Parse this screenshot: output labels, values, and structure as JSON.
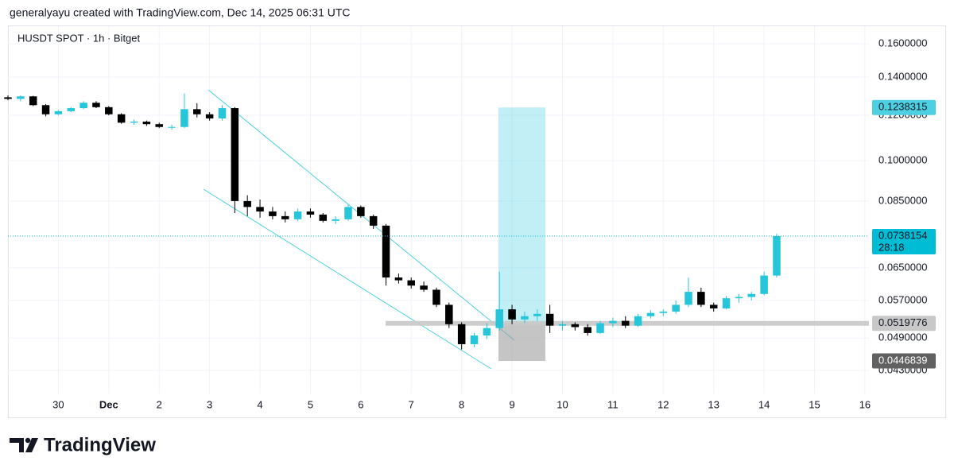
{
  "header": {
    "attribution": "generalyayu created with TradingView.com, Dec 14, 2025 06:31 UTC"
  },
  "footer": {
    "brand": "TradingView"
  },
  "chart_data": {
    "type": "candlestick",
    "title": "HUSDT SPOT · 1h · Bitget",
    "log_scale": true,
    "grid": true,
    "up_color": "#26c6da",
    "down_color": "#000000",
    "x": [
      0,
      0.25,
      0.5,
      0.75,
      1,
      1.25,
      1.5,
      1.75,
      2,
      2.25,
      2.5,
      2.75,
      3,
      3.25,
      3.5,
      3.75,
      4,
      4.25,
      4.5,
      4.75,
      5,
      5.25,
      5.5,
      5.75,
      6,
      6.25,
      6.5,
      6.75,
      7,
      7.25,
      7.5,
      7.75,
      8,
      8.25,
      8.5,
      8.75,
      9,
      9.25,
      9.5,
      9.75,
      10,
      10.25,
      10.5,
      10.75,
      11,
      11.25,
      11.5,
      11.75,
      12,
      12.25,
      12.5,
      12.75,
      13,
      13.25,
      13.5,
      13.75,
      14,
      14.25,
      14.5,
      14.75,
      15,
      15.25
    ],
    "open": [
      0.129,
      0.1282,
      0.1295,
      0.125,
      0.1205,
      0.122,
      0.1235,
      0.1262,
      0.124,
      0.1205,
      0.1165,
      0.117,
      0.1158,
      0.1145,
      0.1145,
      0.123,
      0.1205,
      0.1185,
      0.1235,
      0.085,
      0.083,
      0.0815,
      0.08,
      0.079,
      0.0815,
      0.0805,
      0.0785,
      0.079,
      0.083,
      0.08,
      0.077,
      0.0625,
      0.0618,
      0.0605,
      0.0595,
      0.056,
      0.0518,
      0.0478,
      0.0495,
      0.051,
      0.055,
      0.0528,
      0.0535,
      0.054,
      0.0515,
      0.0518,
      0.0512,
      0.05,
      0.052,
      0.0525,
      0.0515,
      0.0535,
      0.0542,
      0.0545,
      0.056,
      0.059,
      0.056,
      0.0552,
      0.0575,
      0.0578,
      0.0585,
      0.063
    ],
    "high": [
      0.13,
      0.13,
      0.1298,
      0.1255,
      0.1225,
      0.124,
      0.127,
      0.127,
      0.1245,
      0.121,
      0.118,
      0.1175,
      0.1165,
      0.1155,
      0.131,
      0.126,
      0.1215,
      0.125,
      0.124,
      0.087,
      0.0855,
      0.083,
      0.0815,
      0.0825,
      0.0825,
      0.081,
      0.08,
      0.084,
      0.0835,
      0.0805,
      0.0775,
      0.0635,
      0.0625,
      0.0615,
      0.06,
      0.0565,
      0.0522,
      0.05,
      0.052,
      0.064,
      0.056,
      0.0545,
      0.055,
      0.056,
      0.0525,
      0.0522,
      0.0518,
      0.0525,
      0.0532,
      0.0535,
      0.054,
      0.0548,
      0.055,
      0.057,
      0.0625,
      0.06,
      0.0565,
      0.058,
      0.0585,
      0.059,
      0.064,
      0.0745
    ],
    "low": [
      0.1275,
      0.127,
      0.1245,
      0.1195,
      0.12,
      0.1215,
      0.123,
      0.1235,
      0.12,
      0.116,
      0.1155,
      0.115,
      0.114,
      0.1132,
      0.114,
      0.119,
      0.1175,
      0.1175,
      0.081,
      0.08,
      0.0795,
      0.079,
      0.078,
      0.0785,
      0.0795,
      0.078,
      0.0775,
      0.0785,
      0.0795,
      0.076,
      0.0605,
      0.061,
      0.0598,
      0.059,
      0.0555,
      0.051,
      0.0468,
      0.0472,
      0.0488,
      0.0505,
      0.0518,
      0.052,
      0.0525,
      0.05,
      0.0505,
      0.0505,
      0.0495,
      0.0498,
      0.0512,
      0.051,
      0.0512,
      0.053,
      0.0535,
      0.054,
      0.0555,
      0.0555,
      0.0545,
      0.055,
      0.0565,
      0.057,
      0.0582,
      0.0625
    ],
    "close": [
      0.1282,
      0.1295,
      0.125,
      0.1205,
      0.122,
      0.1235,
      0.1262,
      0.124,
      0.1205,
      0.1165,
      0.117,
      0.1158,
      0.1145,
      0.1145,
      0.123,
      0.1205,
      0.1185,
      0.1235,
      0.085,
      0.083,
      0.0815,
      0.08,
      0.079,
      0.0815,
      0.0805,
      0.0785,
      0.079,
      0.083,
      0.08,
      0.077,
      0.0625,
      0.0618,
      0.0605,
      0.0595,
      0.056,
      0.0518,
      0.0478,
      0.0495,
      0.051,
      0.055,
      0.0528,
      0.0535,
      0.054,
      0.0515,
      0.0518,
      0.0512,
      0.05,
      0.052,
      0.0525,
      0.0515,
      0.0535,
      0.0542,
      0.0545,
      0.056,
      0.059,
      0.056,
      0.0552,
      0.0575,
      0.0578,
      0.0585,
      0.063,
      0.0738154
    ],
    "xlim": [
      0,
      17.08
    ],
    "xticks": [
      {
        "value": 1,
        "label": "30"
      },
      {
        "value": 2,
        "label": "Dec"
      },
      {
        "value": 3,
        "label": "2"
      },
      {
        "value": 4,
        "label": "3"
      },
      {
        "value": 5,
        "label": "4"
      },
      {
        "value": 6,
        "label": "5"
      },
      {
        "value": 7,
        "label": "6"
      },
      {
        "value": 8,
        "label": "7"
      },
      {
        "value": 9,
        "label": "8"
      },
      {
        "value": 10,
        "label": "9"
      },
      {
        "value": 11,
        "label": "10"
      },
      {
        "value": 12,
        "label": "11"
      },
      {
        "value": 13,
        "label": "12"
      },
      {
        "value": 14,
        "label": "13"
      },
      {
        "value": 15,
        "label": "14"
      },
      {
        "value": 16,
        "label": "15"
      },
      {
        "value": 17,
        "label": "16"
      }
    ],
    "ylim": [
      0.0392,
      0.1717
    ],
    "yticks": [
      {
        "value": 0.043,
        "label": "0.0430000"
      },
      {
        "value": 0.049,
        "label": "0.0490000"
      },
      {
        "value": 0.057,
        "label": "0.0570000"
      },
      {
        "value": 0.065,
        "label": "0.0650000"
      },
      {
        "value": 0.085,
        "label": "0.0850000"
      },
      {
        "value": 0.1,
        "label": "0.1000000"
      },
      {
        "value": 0.12,
        "label": "0.1200000"
      },
      {
        "value": 0.14,
        "label": "0.1400000"
      },
      {
        "value": 0.16,
        "label": "0.1600000"
      }
    ],
    "last_price_color": "#00bcd4",
    "countdown": "28:18",
    "position": {
      "target": 0.1238315,
      "entry": 0.0519776,
      "stop": 0.0446839,
      "target_color": "#4dd0e1",
      "entry_color": "#c8c8c8",
      "stop_color": "#9e9e9e",
      "stop_label_color": "#616161"
    }
  }
}
